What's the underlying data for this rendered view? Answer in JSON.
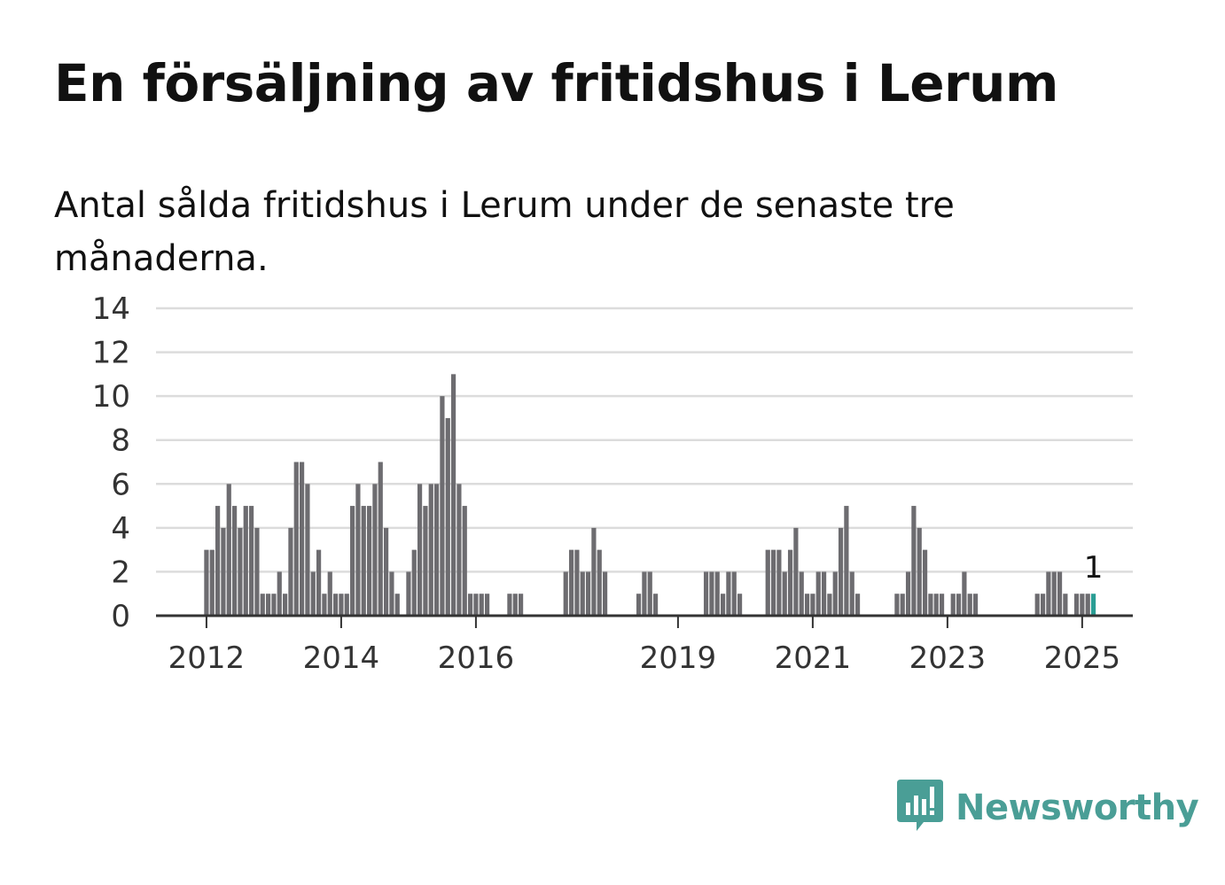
{
  "title": "En försäljning av fritidshus i Lerum",
  "subtitle": "Antal sålda fritidshus i Lerum under de senaste tre månaderna.",
  "brand": {
    "name": "Newsworthy",
    "icon": "newsworthy-logo-icon",
    "color": "#4a9e96"
  },
  "chart_data": {
    "type": "bar",
    "ylim": [
      0,
      14
    ],
    "yticks": [
      0,
      2,
      4,
      6,
      8,
      10,
      12,
      14
    ],
    "xticks": [
      "2012",
      "2014",
      "2016",
      "2019",
      "2021",
      "2023",
      "2025"
    ],
    "grid": true,
    "bar_color": "#6d6c70",
    "highlight_color": "#2a9d94",
    "annotation": {
      "label": "1",
      "value": 1
    },
    "values": [
      0,
      0,
      0,
      0,
      0,
      0,
      0,
      0,
      0,
      0,
      3,
      3,
      5,
      4,
      6,
      5,
      4,
      5,
      5,
      4,
      1,
      1,
      1,
      2,
      1,
      4,
      7,
      7,
      6,
      2,
      3,
      1,
      2,
      1,
      1,
      1,
      5,
      6,
      5,
      5,
      6,
      7,
      4,
      2,
      1,
      0,
      2,
      3,
      6,
      5,
      6,
      6,
      10,
      9,
      11,
      6,
      5,
      1,
      1,
      1,
      1,
      0,
      0,
      0,
      1,
      1,
      1,
      0,
      0,
      0,
      0,
      0,
      0,
      0,
      2,
      3,
      3,
      2,
      2,
      4,
      3,
      2,
      0,
      0,
      0,
      0,
      0,
      1,
      2,
      2,
      1,
      0,
      0,
      0,
      0,
      0,
      0,
      0,
      0,
      2,
      2,
      2,
      1,
      2,
      2,
      1,
      0,
      0,
      0,
      0,
      3,
      3,
      3,
      2,
      3,
      4,
      2,
      1,
      1,
      2,
      2,
      1,
      2,
      4,
      5,
      2,
      1,
      0,
      0,
      0,
      0,
      0,
      0,
      1,
      1,
      2,
      5,
      4,
      3,
      1,
      1,
      1,
      0,
      1,
      1,
      2,
      1,
      1,
      0,
      0,
      0,
      0,
      0,
      0,
      0,
      0,
      0,
      0,
      1,
      1,
      2,
      2,
      2,
      1,
      0,
      1,
      1,
      1,
      1
    ]
  }
}
